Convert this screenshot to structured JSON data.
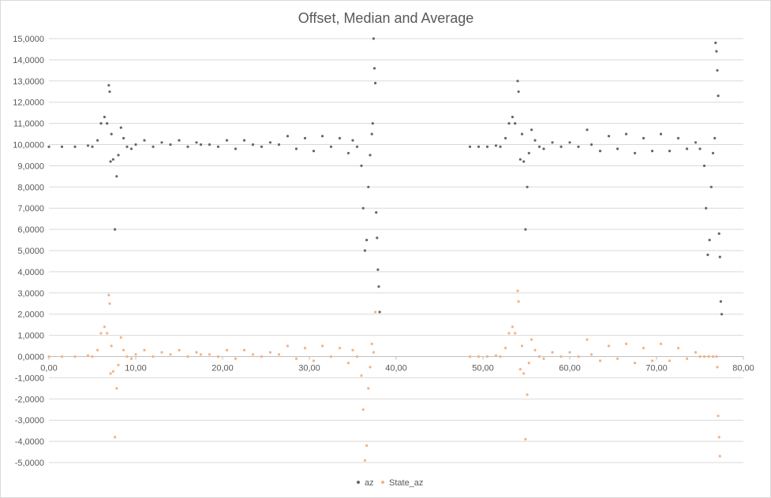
{
  "chart_data": {
    "type": "scatter",
    "title": "Offset, Median and Average",
    "xlabel": "",
    "ylabel": "",
    "xlim": [
      0,
      80
    ],
    "ylim": [
      -5,
      15
    ],
    "x_ticks": [
      "0,00",
      "10,00",
      "20,00",
      "30,00",
      "40,00",
      "50,00",
      "60,00",
      "70,00",
      "80,00"
    ],
    "y_ticks": [
      "-5,0000",
      "-4,0000",
      "-3,0000",
      "-2,0000",
      "-1,0000",
      "0,0000",
      "1,0000",
      "2,0000",
      "3,0000",
      "4,0000",
      "5,0000",
      "6,0000",
      "7,0000",
      "8,0000",
      "9,0000",
      "10,0000",
      "11,0000",
      "12,0000",
      "13,0000",
      "14,0000",
      "15,0000"
    ],
    "grid": true,
    "legend": "bottom",
    "series": [
      {
        "name": "az",
        "color": "#6b6565",
        "points": [
          [
            0.0,
            9.9
          ],
          [
            1.5,
            9.9
          ],
          [
            3.0,
            9.9
          ],
          [
            4.5,
            9.95
          ],
          [
            5.0,
            9.9
          ],
          [
            5.6,
            10.2
          ],
          [
            6.0,
            11.0
          ],
          [
            6.4,
            11.3
          ],
          [
            6.7,
            11.0
          ],
          [
            6.9,
            12.8
          ],
          [
            7.0,
            12.5
          ],
          [
            7.1,
            9.2
          ],
          [
            7.2,
            10.5
          ],
          [
            7.4,
            9.3
          ],
          [
            7.6,
            6.0
          ],
          [
            7.8,
            8.5
          ],
          [
            8.0,
            9.5
          ],
          [
            8.3,
            10.8
          ],
          [
            8.6,
            10.3
          ],
          [
            9.0,
            9.9
          ],
          [
            9.5,
            9.8
          ],
          [
            10.0,
            10.0
          ],
          [
            11.0,
            10.2
          ],
          [
            12.0,
            9.9
          ],
          [
            13.0,
            10.1
          ],
          [
            14.0,
            10.0
          ],
          [
            15.0,
            10.2
          ],
          [
            16.0,
            9.9
          ],
          [
            17.0,
            10.1
          ],
          [
            17.5,
            10.0
          ],
          [
            18.5,
            10.0
          ],
          [
            19.5,
            9.9
          ],
          [
            20.5,
            10.2
          ],
          [
            21.5,
            9.8
          ],
          [
            22.5,
            10.2
          ],
          [
            23.5,
            10.0
          ],
          [
            24.5,
            9.9
          ],
          [
            25.5,
            10.1
          ],
          [
            26.5,
            10.0
          ],
          [
            27.5,
            10.4
          ],
          [
            28.5,
            9.8
          ],
          [
            29.5,
            10.3
          ],
          [
            30.5,
            9.7
          ],
          [
            31.5,
            10.4
          ],
          [
            32.5,
            9.9
          ],
          [
            33.5,
            10.3
          ],
          [
            34.5,
            9.6
          ],
          [
            35.0,
            10.2
          ],
          [
            35.5,
            9.9
          ],
          [
            36.0,
            9.0
          ],
          [
            36.2,
            7.0
          ],
          [
            36.4,
            5.0
          ],
          [
            36.6,
            5.5
          ],
          [
            36.8,
            8.0
          ],
          [
            37.0,
            9.5
          ],
          [
            37.2,
            10.5
          ],
          [
            37.3,
            11.0
          ],
          [
            37.4,
            15.0
          ],
          [
            37.5,
            13.6
          ],
          [
            37.6,
            12.9
          ],
          [
            37.7,
            6.8
          ],
          [
            37.8,
            5.6
          ],
          [
            37.9,
            4.1
          ],
          [
            38.0,
            3.3
          ],
          [
            38.1,
            2.1
          ],
          [
            48.5,
            9.9
          ],
          [
            49.5,
            9.9
          ],
          [
            50.5,
            9.9
          ],
          [
            51.5,
            9.95
          ],
          [
            52.0,
            9.9
          ],
          [
            52.6,
            10.3
          ],
          [
            53.0,
            11.0
          ],
          [
            53.4,
            11.3
          ],
          [
            53.7,
            11.0
          ],
          [
            54.0,
            13.0
          ],
          [
            54.1,
            12.5
          ],
          [
            54.3,
            9.3
          ],
          [
            54.5,
            10.5
          ],
          [
            54.7,
            9.2
          ],
          [
            54.9,
            6.0
          ],
          [
            55.1,
            8.0
          ],
          [
            55.3,
            9.6
          ],
          [
            55.6,
            10.7
          ],
          [
            56.0,
            10.2
          ],
          [
            56.5,
            9.9
          ],
          [
            57.0,
            9.8
          ],
          [
            58.0,
            10.1
          ],
          [
            59.0,
            9.9
          ],
          [
            60.0,
            10.1
          ],
          [
            61.0,
            9.9
          ],
          [
            62.0,
            10.7
          ],
          [
            62.5,
            10.0
          ],
          [
            63.5,
            9.7
          ],
          [
            64.5,
            10.4
          ],
          [
            65.5,
            9.8
          ],
          [
            66.5,
            10.5
          ],
          [
            67.5,
            9.6
          ],
          [
            68.5,
            10.3
          ],
          [
            69.5,
            9.7
          ],
          [
            70.5,
            10.5
          ],
          [
            71.5,
            9.7
          ],
          [
            72.5,
            10.3
          ],
          [
            73.5,
            9.8
          ],
          [
            74.5,
            10.1
          ],
          [
            75.0,
            9.8
          ],
          [
            75.5,
            9.0
          ],
          [
            75.7,
            7.0
          ],
          [
            75.9,
            4.8
          ],
          [
            76.1,
            5.5
          ],
          [
            76.3,
            8.0
          ],
          [
            76.5,
            9.6
          ],
          [
            76.7,
            10.3
          ],
          [
            76.8,
            14.8
          ],
          [
            76.9,
            14.4
          ],
          [
            77.0,
            13.5
          ],
          [
            77.1,
            12.3
          ],
          [
            77.2,
            5.8
          ],
          [
            77.3,
            4.7
          ],
          [
            77.4,
            2.6
          ],
          [
            77.5,
            2.0
          ]
        ]
      },
      {
        "name": "State_az",
        "color": "#f4b183",
        "points": [
          [
            0.0,
            0.0
          ],
          [
            1.5,
            0.0
          ],
          [
            3.0,
            0.0
          ],
          [
            4.5,
            0.05
          ],
          [
            5.0,
            0.0
          ],
          [
            5.6,
            0.3
          ],
          [
            6.0,
            1.1
          ],
          [
            6.4,
            1.4
          ],
          [
            6.7,
            1.1
          ],
          [
            6.9,
            2.9
          ],
          [
            7.0,
            2.5
          ],
          [
            7.1,
            -0.8
          ],
          [
            7.2,
            0.5
          ],
          [
            7.4,
            -0.7
          ],
          [
            7.6,
            -3.8
          ],
          [
            7.8,
            -1.5
          ],
          [
            8.0,
            -0.4
          ],
          [
            8.3,
            0.9
          ],
          [
            8.6,
            0.3
          ],
          [
            9.0,
            0.0
          ],
          [
            9.5,
            -0.1
          ],
          [
            10.0,
            0.1
          ],
          [
            11.0,
            0.3
          ],
          [
            12.0,
            0.0
          ],
          [
            13.0,
            0.2
          ],
          [
            14.0,
            0.1
          ],
          [
            15.0,
            0.3
          ],
          [
            16.0,
            0.0
          ],
          [
            17.0,
            0.2
          ],
          [
            17.5,
            0.1
          ],
          [
            18.5,
            0.1
          ],
          [
            19.5,
            0.0
          ],
          [
            20.5,
            0.3
          ],
          [
            21.5,
            -0.1
          ],
          [
            22.5,
            0.3
          ],
          [
            23.5,
            0.1
          ],
          [
            24.5,
            0.0
          ],
          [
            25.5,
            0.2
          ],
          [
            26.5,
            0.1
          ],
          [
            27.5,
            0.5
          ],
          [
            28.5,
            -0.1
          ],
          [
            29.5,
            0.4
          ],
          [
            30.5,
            -0.2
          ],
          [
            31.5,
            0.5
          ],
          [
            32.5,
            0.0
          ],
          [
            33.5,
            0.4
          ],
          [
            34.5,
            -0.3
          ],
          [
            35.0,
            0.3
          ],
          [
            35.5,
            0.0
          ],
          [
            36.0,
            -0.9
          ],
          [
            36.2,
            -2.5
          ],
          [
            36.4,
            -4.9
          ],
          [
            36.6,
            -4.2
          ],
          [
            36.8,
            -1.5
          ],
          [
            37.0,
            -0.5
          ],
          [
            37.2,
            0.6
          ],
          [
            37.4,
            0.2
          ],
          [
            37.6,
            2.1
          ],
          [
            48.5,
            0.0
          ],
          [
            49.5,
            0.0
          ],
          [
            50.5,
            0.0
          ],
          [
            51.5,
            0.05
          ],
          [
            52.0,
            0.0
          ],
          [
            52.6,
            0.4
          ],
          [
            53.0,
            1.1
          ],
          [
            53.4,
            1.4
          ],
          [
            53.7,
            1.1
          ],
          [
            54.0,
            3.1
          ],
          [
            54.1,
            2.6
          ],
          [
            54.3,
            -0.6
          ],
          [
            54.5,
            0.5
          ],
          [
            54.7,
            -0.8
          ],
          [
            54.9,
            -3.9
          ],
          [
            55.1,
            -1.8
          ],
          [
            55.3,
            -0.3
          ],
          [
            55.6,
            0.8
          ],
          [
            56.0,
            0.3
          ],
          [
            56.5,
            0.0
          ],
          [
            57.0,
            -0.1
          ],
          [
            58.0,
            0.2
          ],
          [
            59.0,
            0.0
          ],
          [
            60.0,
            0.2
          ],
          [
            61.0,
            0.0
          ],
          [
            62.0,
            0.8
          ],
          [
            62.5,
            0.1
          ],
          [
            63.5,
            -0.2
          ],
          [
            64.5,
            0.5
          ],
          [
            65.5,
            -0.1
          ],
          [
            66.5,
            0.6
          ],
          [
            67.5,
            -0.3
          ],
          [
            68.5,
            0.4
          ],
          [
            69.5,
            -0.2
          ],
          [
            70.5,
            0.6
          ],
          [
            71.5,
            -0.2
          ],
          [
            72.5,
            0.4
          ],
          [
            73.5,
            -0.1
          ],
          [
            74.5,
            0.2
          ],
          [
            75.0,
            0.0
          ],
          [
            75.5,
            0.0
          ],
          [
            76.0,
            0.0
          ],
          [
            76.5,
            0.0
          ],
          [
            76.9,
            0.0
          ],
          [
            77.0,
            -0.5
          ],
          [
            77.1,
            -2.8
          ],
          [
            77.2,
            -3.8
          ],
          [
            77.3,
            -4.7
          ]
        ]
      }
    ]
  }
}
